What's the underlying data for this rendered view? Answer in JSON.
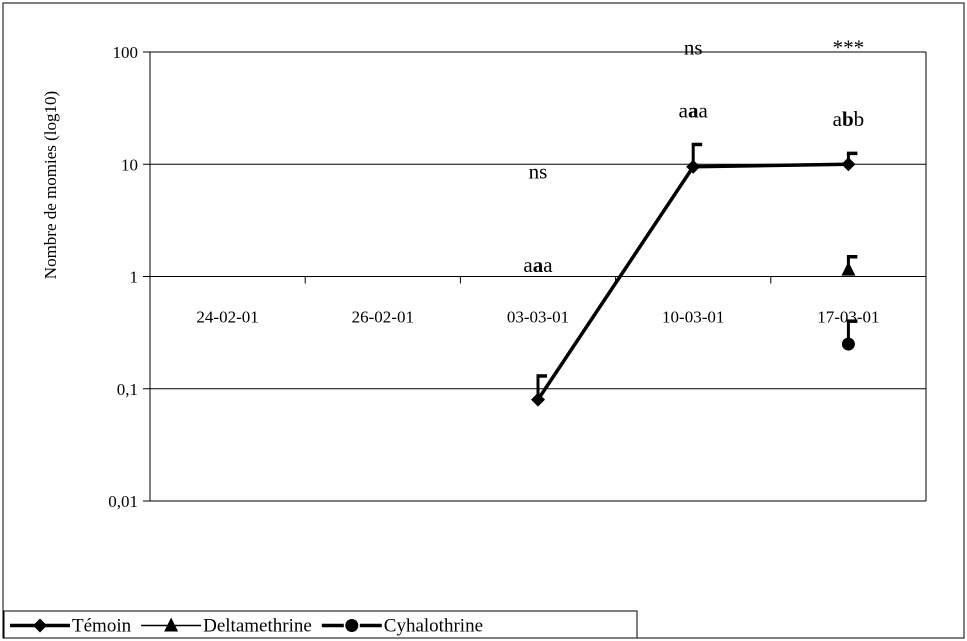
{
  "chart_data": {
    "type": "line",
    "ylabel": "Nombre de momies (log10)",
    "yscale": "log",
    "ylim": [
      0.01,
      100
    ],
    "yticks": [
      {
        "value": 100,
        "label": "100"
      },
      {
        "value": 10,
        "label": "10"
      },
      {
        "value": 1,
        "label": "1"
      },
      {
        "value": 0.1,
        "label": "0,1"
      },
      {
        "value": 0.01,
        "label": "0,01"
      }
    ],
    "categories": [
      "24-02-01",
      "26-02-01",
      "03-03-01",
      "10-03-01",
      "17-03-01"
    ],
    "grid": true,
    "legend_position": "bottom-left",
    "series": [
      {
        "name": "Témoin",
        "marker": "diamond",
        "line_width": "thick",
        "values": [
          null,
          null,
          0.08,
          9.5,
          10
        ],
        "errors_upper": [
          null,
          null,
          0.13,
          15,
          12.5
        ]
      },
      {
        "name": "Deltamethrine",
        "marker": "triangle",
        "line_width": "thin",
        "values": [
          null,
          null,
          null,
          null,
          1.15
        ],
        "errors_upper": [
          null,
          null,
          null,
          null,
          1.5
        ]
      },
      {
        "name": "Cyhalothrine",
        "marker": "circle",
        "line_width": "thick-dashed",
        "values": [
          null,
          null,
          null,
          null,
          0.25
        ],
        "errors_upper": [
          null,
          null,
          null,
          null,
          0.4
        ]
      }
    ],
    "annotations": [
      {
        "category": "03-03-01",
        "y": 7.5,
        "parts": [
          {
            "text": "ns",
            "bold": false
          }
        ]
      },
      {
        "category": "03-03-01",
        "y": 1.1,
        "parts": [
          {
            "text": "a",
            "bold": false
          },
          {
            "text": "a",
            "bold": true
          },
          {
            "text": "a",
            "bold": false
          }
        ]
      },
      {
        "category": "10-03-01",
        "y": 95,
        "parts": [
          {
            "text": "ns",
            "bold": false
          }
        ]
      },
      {
        "category": "10-03-01",
        "y": 26,
        "parts": [
          {
            "text": "a",
            "bold": false
          },
          {
            "text": "a",
            "bold": true
          },
          {
            "text": "a",
            "bold": false
          }
        ]
      },
      {
        "category": "17-03-01",
        "y": 95,
        "parts": [
          {
            "text": "***",
            "bold": false
          }
        ]
      },
      {
        "category": "17-03-01",
        "y": 22,
        "parts": [
          {
            "text": "a",
            "bold": false
          },
          {
            "text": "b",
            "bold": true
          },
          {
            "text": "b",
            "bold": false
          }
        ]
      }
    ]
  }
}
